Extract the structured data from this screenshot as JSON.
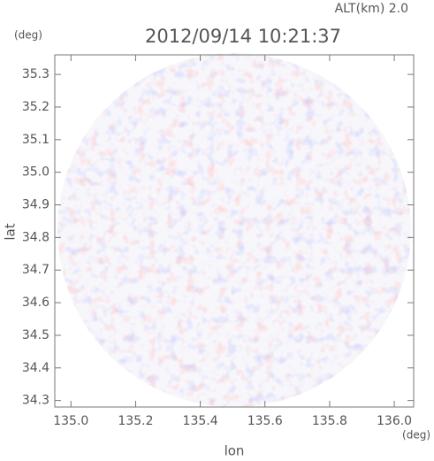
{
  "chart_data": {
    "type": "radar-map",
    "title": "2012/09/14 10:21:37",
    "subtitle": "ALT(km) 2.0",
    "y_unit": "(deg)",
    "x_unit": "(deg)",
    "xlabel": "lon",
    "ylabel": "lat",
    "xlim": [
      134.95,
      136.06
    ],
    "ylim": [
      34.28,
      35.36
    ],
    "xticks": [
      {
        "value": 135,
        "label": "135.0"
      },
      135.2,
      135.4,
      135.6,
      135.8,
      {
        "value": 136,
        "label": "136.0"
      }
    ],
    "yticks": [
      34.3,
      34.4,
      34.5,
      34.6,
      34.7,
      34.8,
      34.9,
      {
        "value": 35,
        "label": "35.0"
      },
      35.1,
      35.2,
      35.3
    ]
  }
}
